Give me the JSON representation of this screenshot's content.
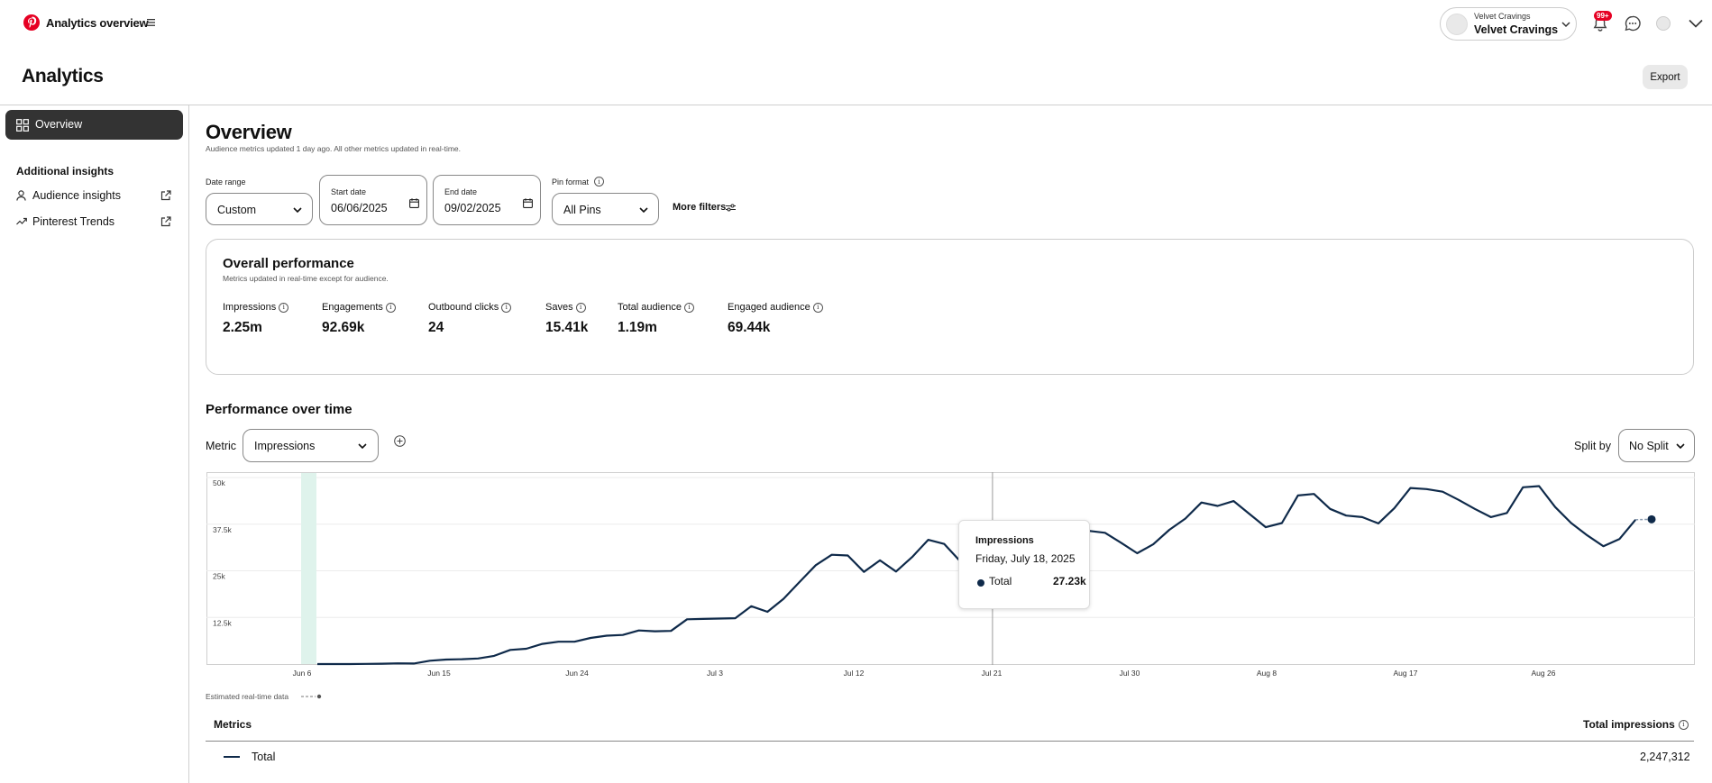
{
  "header": {
    "app_title": "Analytics overview",
    "account": {
      "small_name": "Velvet Cravings",
      "name": "Velvet Cravings"
    },
    "notifications_badge": "99+"
  },
  "page": {
    "title": "Analytics",
    "export_label": "Export"
  },
  "sidebar": {
    "active_item": "Overview",
    "section_title": "Additional insights",
    "items": [
      {
        "label": "Audience insights",
        "icon": "person-icon"
      },
      {
        "label": "Pinterest Trends",
        "icon": "trend-icon"
      }
    ]
  },
  "overview": {
    "title": "Overview",
    "subtitle": "Audience metrics updated 1 day ago. All other metrics updated in real-time."
  },
  "filters": {
    "date_range_label": "Date range",
    "date_range_value": "Custom",
    "start_label": "Start date",
    "start_value": "06/06/2025",
    "end_label": "End date",
    "end_value": "09/02/2025",
    "pin_format_label": "Pin format",
    "pin_format_value": "All Pins",
    "more_filters": "More filters"
  },
  "performance": {
    "title": "Overall performance",
    "subtitle": "Metrics updated in real-time except for audience.",
    "metrics": [
      {
        "label": "Impressions",
        "value": "2.25m"
      },
      {
        "label": "Engagements",
        "value": "92.69k"
      },
      {
        "label": "Outbound clicks",
        "value": "24"
      },
      {
        "label": "Saves",
        "value": "15.41k"
      },
      {
        "label": "Total audience",
        "value": "1.19m"
      },
      {
        "label": "Engaged audience",
        "value": "69.44k"
      }
    ]
  },
  "over_time": {
    "title": "Performance over time",
    "metric_label": "Metric",
    "metric_value": "Impressions",
    "split_label": "Split by",
    "split_value": "No Split"
  },
  "tooltip": {
    "title": "Impressions",
    "date": "Friday, July 18, 2025",
    "series": "Total",
    "value": "27.23k"
  },
  "estimated_label": "Estimated real-time data",
  "table": {
    "col_metric": "Metrics",
    "col_total": "Total impressions",
    "rows": [
      {
        "name": "Total",
        "value": "2,247,312"
      }
    ]
  },
  "colors": {
    "line": "#0f2a4a",
    "highlight_band": "#dff3ec",
    "brand": "#e60023"
  },
  "chart_data": {
    "type": "line",
    "title": "",
    "xlabel": "",
    "ylabel": "",
    "ylim": [
      0,
      50000
    ],
    "y_ticks": [
      "12.5k",
      "25k",
      "37.5k",
      "50k"
    ],
    "x_ticks": [
      "Jun 6",
      "Jun 15",
      "Jun 24",
      "Jul 3",
      "Jul 12",
      "Jul 21",
      "Jul 30",
      "Aug 8",
      "Aug 17",
      "Aug 26"
    ],
    "grid": true,
    "start_date": "2025-06-06",
    "series": [
      {
        "name": "Total",
        "values": [
          0,
          0,
          0,
          50,
          100,
          200,
          150,
          900,
          1200,
          1300,
          1500,
          2200,
          3800,
          4100,
          5400,
          6000,
          6000,
          7000,
          7600,
          7800,
          9000,
          8800,
          8900,
          12000,
          12100,
          12200,
          12300,
          15500,
          14000,
          17500,
          22000,
          26500,
          29300,
          29100,
          24700,
          27800,
          24800,
          28700,
          33300,
          32200,
          27500,
          27200,
          28100,
          29000,
          28500,
          30000,
          31000,
          33500,
          35700,
          35200,
          32500,
          29700,
          32100,
          36000,
          39000,
          43300,
          42400,
          43700,
          40200,
          36700,
          37800,
          45200,
          45600,
          41600,
          39800,
          39400,
          37700,
          41800,
          47200,
          46900,
          46200,
          44000,
          41600,
          39400,
          40500,
          47400,
          47700,
          42100,
          37800,
          34500,
          31600,
          33500,
          38700,
          38800
        ]
      }
    ],
    "highlight": {
      "date": "Jul 18",
      "value": 27230
    }
  }
}
